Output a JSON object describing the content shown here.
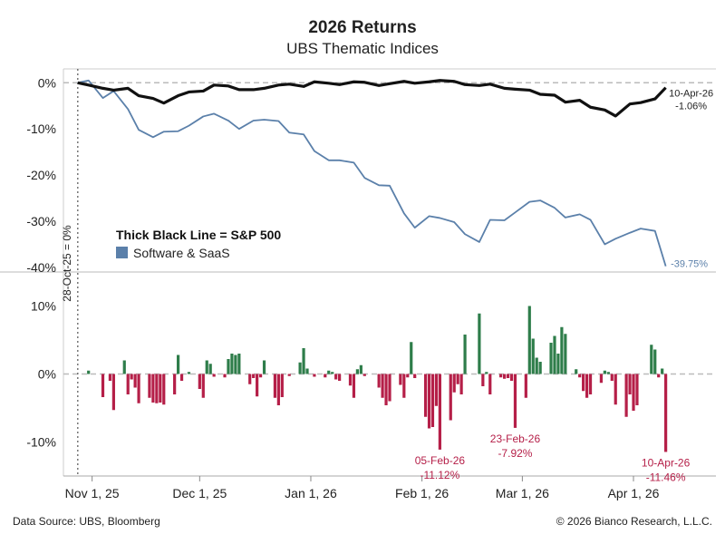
{
  "title": "2026 Returns",
  "subtitle": "UBS Thematic Indices",
  "footer": {
    "source": "Data Source: UBS, Bloomberg",
    "copyright": "© 2026 Bianco Research, L.L.C."
  },
  "colors": {
    "sp500": "#111111",
    "software": "#5b80aa",
    "bar_pos": "#2e7d4a",
    "bar_neg": "#b51f48",
    "zero_line": "#bbbbbb",
    "axis": "#999999"
  },
  "chart_data": [
    {
      "type": "line",
      "panel": "top",
      "ylim": [
        -41,
        3
      ],
      "yticks": [
        0,
        -10,
        -20,
        -30,
        -40
      ],
      "ytick_labels": [
        "0%",
        "-10%",
        "-20%",
        "-30%",
        "-40%"
      ],
      "start_label": "28-Oct-25 = 0%",
      "legend": {
        "sp500_label": "Thick Black Line = S&P 500",
        "software_label": "Software & SaaS",
        "placement": "left-center"
      },
      "series": [
        {
          "name": "S&P 500",
          "x": [
            "2025-10-28",
            "2025-10-31",
            "2025-11-04",
            "2025-11-07",
            "2025-11-11",
            "2025-11-14",
            "2025-11-18",
            "2025-11-21",
            "2025-11-25",
            "2025-11-28",
            "2025-12-02",
            "2025-12-05",
            "2025-12-09",
            "2025-12-12",
            "2025-12-16",
            "2025-12-19",
            "2025-12-23",
            "2025-12-26",
            "2025-12-30",
            "2026-01-02",
            "2026-01-06",
            "2026-01-09",
            "2026-01-13",
            "2026-01-16",
            "2026-01-20",
            "2026-01-23",
            "2026-01-27",
            "2026-01-30",
            "2026-02-03",
            "2026-02-06",
            "2026-02-10",
            "2026-02-13",
            "2026-02-17",
            "2026-02-20",
            "2026-02-24",
            "2026-02-27",
            "2026-03-03",
            "2026-03-06",
            "2026-03-10",
            "2026-03-13",
            "2026-03-17",
            "2026-03-20",
            "2026-03-24",
            "2026-03-27",
            "2026-03-31",
            "2026-04-03",
            "2026-04-07",
            "2026-04-10"
          ],
          "values": [
            0,
            -0.5,
            -1.2,
            -1.6,
            -1.2,
            -2.8,
            -3.4,
            -4.4,
            -2.8,
            -2.0,
            -1.8,
            -0.5,
            -0.7,
            -1.5,
            -1.5,
            -1.2,
            -0.5,
            -0.3,
            -0.8,
            0.2,
            -0.1,
            -0.4,
            0.2,
            0.1,
            -0.6,
            -0.2,
            0.3,
            -0.1,
            0.2,
            0.5,
            0.3,
            -0.4,
            -0.6,
            -0.3,
            -1.2,
            -1.4,
            -1.6,
            -2.5,
            -2.7,
            -4.2,
            -3.8,
            -5.3,
            -5.9,
            -7.2,
            -4.6,
            -4.3,
            -3.5,
            -1.06
          ],
          "end_label": "10-Apr-26",
          "end_value_label": "-1.06%"
        },
        {
          "name": "Software & SaaS",
          "x": [
            "2025-10-28",
            "2025-10-31",
            "2025-11-04",
            "2025-11-07",
            "2025-11-11",
            "2025-11-14",
            "2025-11-18",
            "2025-11-21",
            "2025-11-25",
            "2025-11-28",
            "2025-12-02",
            "2025-12-05",
            "2025-12-09",
            "2025-12-12",
            "2025-12-16",
            "2025-12-19",
            "2025-12-23",
            "2025-12-26",
            "2025-12-30",
            "2026-01-02",
            "2026-01-06",
            "2026-01-09",
            "2026-01-13",
            "2026-01-16",
            "2026-01-20",
            "2026-01-23",
            "2026-01-27",
            "2026-01-30",
            "2026-02-03",
            "2026-02-06",
            "2026-02-10",
            "2026-02-13",
            "2026-02-17",
            "2026-02-20",
            "2026-02-24",
            "2026-02-27",
            "2026-03-03",
            "2026-03-06",
            "2026-03-10",
            "2026-03-13",
            "2026-03-17",
            "2026-03-20",
            "2026-03-24",
            "2026-03-27",
            "2026-03-31",
            "2026-04-03",
            "2026-04-07",
            "2026-04-10"
          ],
          "values": [
            0,
            0.5,
            -3.3,
            -1.8,
            -5.7,
            -10.2,
            -11.8,
            -10.6,
            -10.5,
            -9.3,
            -7.3,
            -6.7,
            -8.2,
            -10.0,
            -8.2,
            -8.0,
            -8.3,
            -10.8,
            -11.2,
            -14.8,
            -16.8,
            -16.8,
            -17.3,
            -20.6,
            -22.2,
            -22.3,
            -28.3,
            -31.4,
            -28.9,
            -29.3,
            -30.2,
            -32.8,
            -34.5,
            -29.7,
            -29.8,
            -28.1,
            -25.8,
            -25.5,
            -27.1,
            -29.2,
            -28.5,
            -29.7,
            -35.0,
            -33.8,
            -32.5,
            -31.6,
            -32.1,
            -39.75
          ],
          "end_value_label": "-39.75%"
        }
      ]
    },
    {
      "type": "bar",
      "panel": "bottom",
      "ylim": [
        -15,
        15
      ],
      "yticks": [
        10,
        0,
        -10
      ],
      "ytick_labels": [
        "10%",
        "0%",
        "-10%"
      ],
      "xticks": [
        "2025-11-01",
        "2025-12-01",
        "2026-01-01",
        "2026-02-01",
        "2026-03-01",
        "2026-04-01"
      ],
      "xtick_labels": [
        "Nov 1, 25",
        "Dec 1, 25",
        "Jan 1, 26",
        "Feb 1, 26",
        "Mar 1, 26",
        "Apr 1, 26"
      ],
      "series": [
        {
          "name": "Software & SaaS",
          "x": [
            "2025-10-31",
            "2025-11-04",
            "2025-11-06",
            "2025-11-07",
            "2025-11-10",
            "2025-11-11",
            "2025-11-12",
            "2025-11-13",
            "2025-11-14",
            "2025-11-17",
            "2025-11-18",
            "2025-11-19",
            "2025-11-20",
            "2025-11-21",
            "2025-11-24",
            "2025-11-25",
            "2025-11-26",
            "2025-11-28",
            "2025-12-01",
            "2025-12-02",
            "2025-12-03",
            "2025-12-04",
            "2025-12-05",
            "2025-12-08",
            "2025-12-09",
            "2025-12-10",
            "2025-12-11",
            "2025-12-12",
            "2025-12-15",
            "2025-12-16",
            "2025-12-17",
            "2025-12-18",
            "2025-12-19",
            "2025-12-22",
            "2025-12-23",
            "2025-12-24",
            "2025-12-26",
            "2025-12-29",
            "2025-12-30",
            "2025-12-31",
            "2026-01-02",
            "2026-01-05",
            "2026-01-06",
            "2026-01-07",
            "2026-01-08",
            "2026-01-09",
            "2026-01-12",
            "2026-01-13",
            "2026-01-14",
            "2026-01-15",
            "2026-01-16",
            "2026-01-20",
            "2026-01-21",
            "2026-01-22",
            "2026-01-23",
            "2026-01-26",
            "2026-01-27",
            "2026-01-28",
            "2026-01-29",
            "2026-01-30",
            "2026-02-02",
            "2026-02-03",
            "2026-02-04",
            "2026-02-05",
            "2026-02-06",
            "2026-02-09",
            "2026-02-10",
            "2026-02-11",
            "2026-02-12",
            "2026-02-13",
            "2026-02-17",
            "2026-02-18",
            "2026-02-19",
            "2026-02-20",
            "2026-02-23",
            "2026-02-24",
            "2026-02-25",
            "2026-02-26",
            "2026-02-27",
            "2026-03-02",
            "2026-03-03",
            "2026-03-04",
            "2026-03-05",
            "2026-03-06",
            "2026-03-09",
            "2026-03-10",
            "2026-03-11",
            "2026-03-12",
            "2026-03-13",
            "2026-03-16",
            "2026-03-17",
            "2026-03-18",
            "2026-03-19",
            "2026-03-20",
            "2026-03-23",
            "2026-03-24",
            "2026-03-25",
            "2026-03-26",
            "2026-03-27",
            "2026-03-30",
            "2026-03-31",
            "2026-04-01",
            "2026-04-02",
            "2026-04-06",
            "2026-04-07",
            "2026-04-08",
            "2026-04-09",
            "2026-04-10"
          ],
          "values": [
            0.5,
            -3.4,
            -1.0,
            -5.3,
            2.0,
            -3.0,
            -0.8,
            -2.0,
            -4.3,
            -3.5,
            -4.2,
            -4.3,
            -4.2,
            -4.5,
            -3.0,
            2.8,
            -1.0,
            0.3,
            -2.2,
            -3.5,
            2.0,
            1.5,
            -0.4,
            -0.5,
            2.2,
            3.0,
            2.8,
            3.0,
            -1.5,
            -0.6,
            -3.3,
            -0.5,
            2.0,
            -3.5,
            -4.6,
            -3.4,
            -0.3,
            1.7,
            3.8,
            0.8,
            -0.4,
            -0.5,
            0.5,
            0.3,
            -0.8,
            -1.0,
            -1.7,
            -3.5,
            0.7,
            1.3,
            -0.3,
            -2.0,
            -3.5,
            -4.6,
            -4.0,
            -1.6,
            -3.5,
            -0.5,
            4.7,
            -0.6,
            -6.3,
            -8.0,
            -7.8,
            -4.7,
            -11.12,
            -6.8,
            -2.7,
            -1.5,
            -3.0,
            5.8,
            8.9,
            -1.8,
            0.3,
            -3.0,
            -0.5,
            -0.7,
            -0.6,
            -1.0,
            -7.92,
            -3.5,
            10.0,
            5.2,
            2.4,
            1.8,
            4.6,
            5.6,
            3.0,
            6.9,
            5.9,
            0.7,
            -0.5,
            -2.5,
            -3.5,
            -3.0,
            -1.3,
            0.5,
            0.3,
            -1.0,
            -4.5,
            -6.3,
            -3.0,
            -5.4,
            -4.6,
            4.3,
            3.6,
            -0.5,
            0.8,
            -11.46
          ],
          "annotations": [
            {
              "date": "2026-02-06",
              "text1": "05-Feb-26",
              "text2": "-11.12%"
            },
            {
              "date": "2026-02-27",
              "text1": "23-Feb-26",
              "text2": "-7.92%"
            },
            {
              "date": "2026-04-10",
              "text1": "10-Apr-26",
              "text2": "-11.46%"
            }
          ]
        }
      ]
    }
  ]
}
